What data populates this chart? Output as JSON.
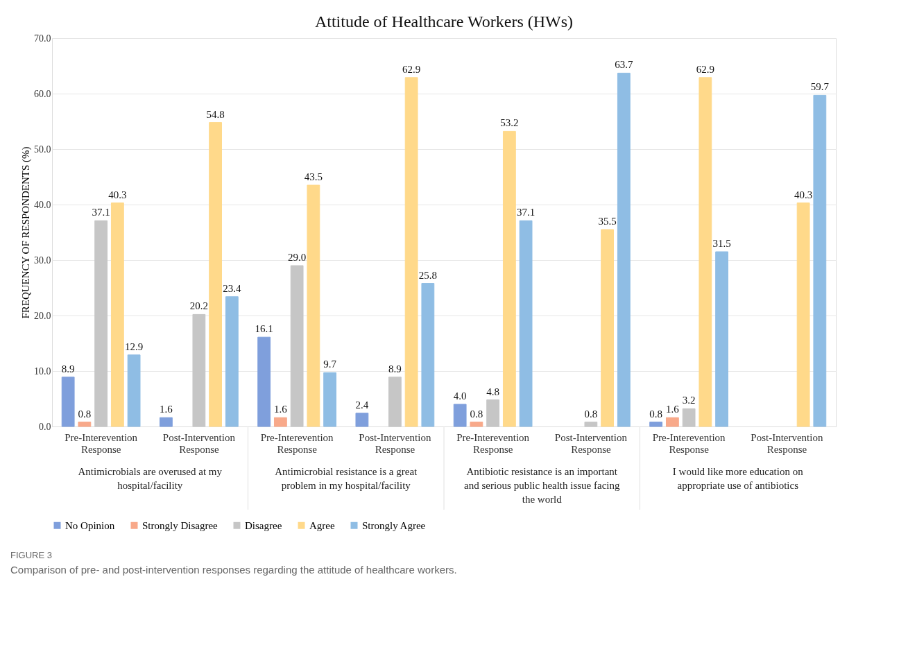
{
  "chart_data": {
    "type": "bar",
    "title": "Attitude of Healthcare Workers (HWs)",
    "ylabel": "FREQUENCY OF RESPONDENTS (%)",
    "categories": [
      "Pre-Interevention Response",
      "Post-Intervention Response",
      "Pre-Interevention Response",
      "Post-Intervention Response",
      "Pre-Interevention Response",
      "Post-Intervention Response",
      "Pre-Interevention Response",
      "Post-Intervention Response"
    ],
    "series": [
      {
        "name": "No Opinion",
        "color": "#7f9fdc",
        "values": [
          8.9,
          1.6,
          16.1,
          2.4,
          4.0,
          null,
          0.8,
          null
        ],
        "value_labels": [
          "8.9",
          "1.6",
          "16.1",
          "2.4",
          "4.0",
          null,
          "0.8",
          null
        ]
      },
      {
        "name": "Strongly Disagree",
        "color": "#f8a98a",
        "values": [
          0.8,
          null,
          1.6,
          null,
          0.8,
          null,
          1.6,
          null
        ],
        "value_labels": [
          "0.8",
          null,
          "1.6",
          null,
          "0.8",
          null,
          "1.6",
          null
        ]
      },
      {
        "name": "Disagree",
        "color": "#c6c6c6",
        "values": [
          37.1,
          20.2,
          29.0,
          8.9,
          4.8,
          0.8,
          3.2,
          null
        ],
        "value_labels": [
          "37.1",
          "20.2",
          "29.0",
          "8.9",
          "4.8",
          "0.8",
          "3.2",
          null
        ]
      },
      {
        "name": "Agree",
        "color": "#ffd98a",
        "values": [
          40.3,
          54.8,
          43.5,
          62.9,
          53.2,
          35.5,
          62.9,
          40.3
        ],
        "value_labels": [
          "40.3",
          "54.8",
          "43.5",
          "62.9",
          "53.2",
          "35.5",
          "62.9",
          "40.3"
        ]
      },
      {
        "name": "Strongly Agree",
        "color": "#8fbde4",
        "values": [
          12.9,
          23.4,
          9.7,
          25.8,
          37.1,
          63.7,
          31.5,
          59.7
        ],
        "value_labels": [
          "12.9",
          "23.4",
          "9.7",
          "25.8",
          "37.1",
          "63.7",
          "31.5",
          "59.7"
        ]
      }
    ],
    "ylim": [
      0,
      70
    ],
    "yticks": [
      {
        "value": 0,
        "label": "0.0"
      },
      {
        "value": 10,
        "label": "10.0"
      },
      {
        "value": 20,
        "label": "20.0"
      },
      {
        "value": 30,
        "label": "30.0"
      },
      {
        "value": 40,
        "label": "40.0"
      },
      {
        "value": 50,
        "label": "50.0"
      },
      {
        "value": 60,
        "label": "60.0"
      },
      {
        "value": 70,
        "label": "70.0"
      }
    ],
    "grid": "y",
    "legend": "bottom",
    "annotations": [
      "Antimicrobials are overused at my hospital/facility",
      "Antimicrobial resistance is a great problem in my hospital/facility",
      "Antibiotic resistance is an important and serious public health issue facing the world",
      "I would like more education on appropriate use of antibiotics",
      "FIGURE 3",
      "Comparison of pre- and post-intervention responses regarding the attitude of healthcare workers."
    ]
  }
}
